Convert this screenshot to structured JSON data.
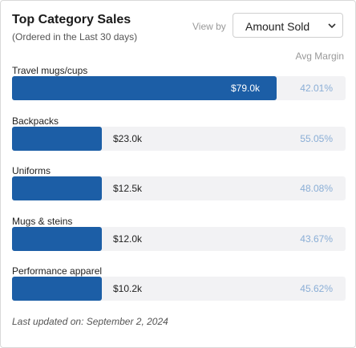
{
  "header": {
    "title": "Top Category Sales",
    "subtitle": "(Ordered in the Last 30 days)",
    "view_by_label": "View by",
    "view_by_selected": "Amount Sold",
    "margin_column_label": "Avg Margin"
  },
  "chart_data": {
    "type": "bar",
    "categories": [
      "Travel mugs/cups",
      "Backpacks",
      "Uniforms",
      "Mugs & steins",
      "Performance apparel"
    ],
    "values": [
      79.0,
      23.0,
      12.5,
      12.0,
      10.2
    ],
    "value_labels": [
      "$79.0k",
      "$23.0k",
      "$12.5k",
      "$12.0k",
      "$10.2k"
    ],
    "avg_margin": [
      "42.01%",
      "55.05%",
      "48.08%",
      "43.67%",
      "45.62%"
    ],
    "colors": {
      "bar": "#1c5ea6",
      "track": "#f2f2f4",
      "margin_text": "#8aaed6"
    }
  },
  "footer": {
    "last_updated": "Last updated on: September 2, 2024"
  }
}
